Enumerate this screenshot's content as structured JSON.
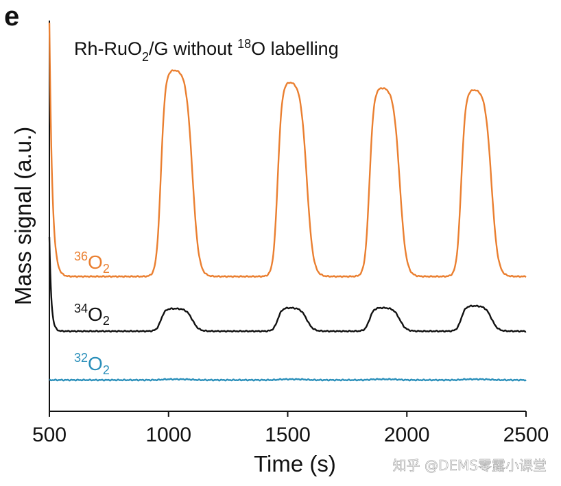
{
  "panel_label": "e",
  "watermark": "知乎 @DEMS零露小课堂",
  "chart_data": {
    "type": "line",
    "title": {
      "prefix": "Rh-RuO",
      "sub": "2",
      "middle": "/G without ",
      "sup": "18",
      "suffix": "O labelling"
    },
    "xlabel": "Time (s)",
    "ylabel": "Mass signal (a.u.)",
    "xlim": [
      500,
      2500
    ],
    "ylim": [
      0,
      100
    ],
    "xticks": [
      500,
      1000,
      1500,
      2000,
      2500
    ],
    "peaks": [
      {
        "start": 950,
        "end": 1100
      },
      {
        "start": 1440,
        "end": 1580
      },
      {
        "start": 1825,
        "end": 1970
      },
      {
        "start": 2210,
        "end": 2355
      }
    ],
    "series": [
      {
        "name": "36O2",
        "label_sup": "36",
        "label_base": "O",
        "label_sub": "2",
        "color": "#ea7f30",
        "baseline": 34.5,
        "amplitudes": [
          53,
          50,
          48.5,
          48
        ],
        "initial_spike": {
          "start": 65,
          "decay": 12
        }
      },
      {
        "name": "34O2",
        "label_sup": "34",
        "label_base": "O",
        "label_sub": "2",
        "color": "#111111",
        "baseline": 20.5,
        "amplitudes": [
          5.8,
          6.0,
          6.0,
          6.5
        ],
        "initial_spike": {
          "start": 24,
          "decay": 8
        }
      },
      {
        "name": "32O2",
        "label_sup": "32",
        "label_base": "O",
        "label_sub": "2",
        "color": "#2a8fba",
        "baseline": 8.0,
        "amplitudes": [
          0.2,
          0.2,
          0.2,
          0.2
        ],
        "initial_spike": null
      }
    ]
  }
}
